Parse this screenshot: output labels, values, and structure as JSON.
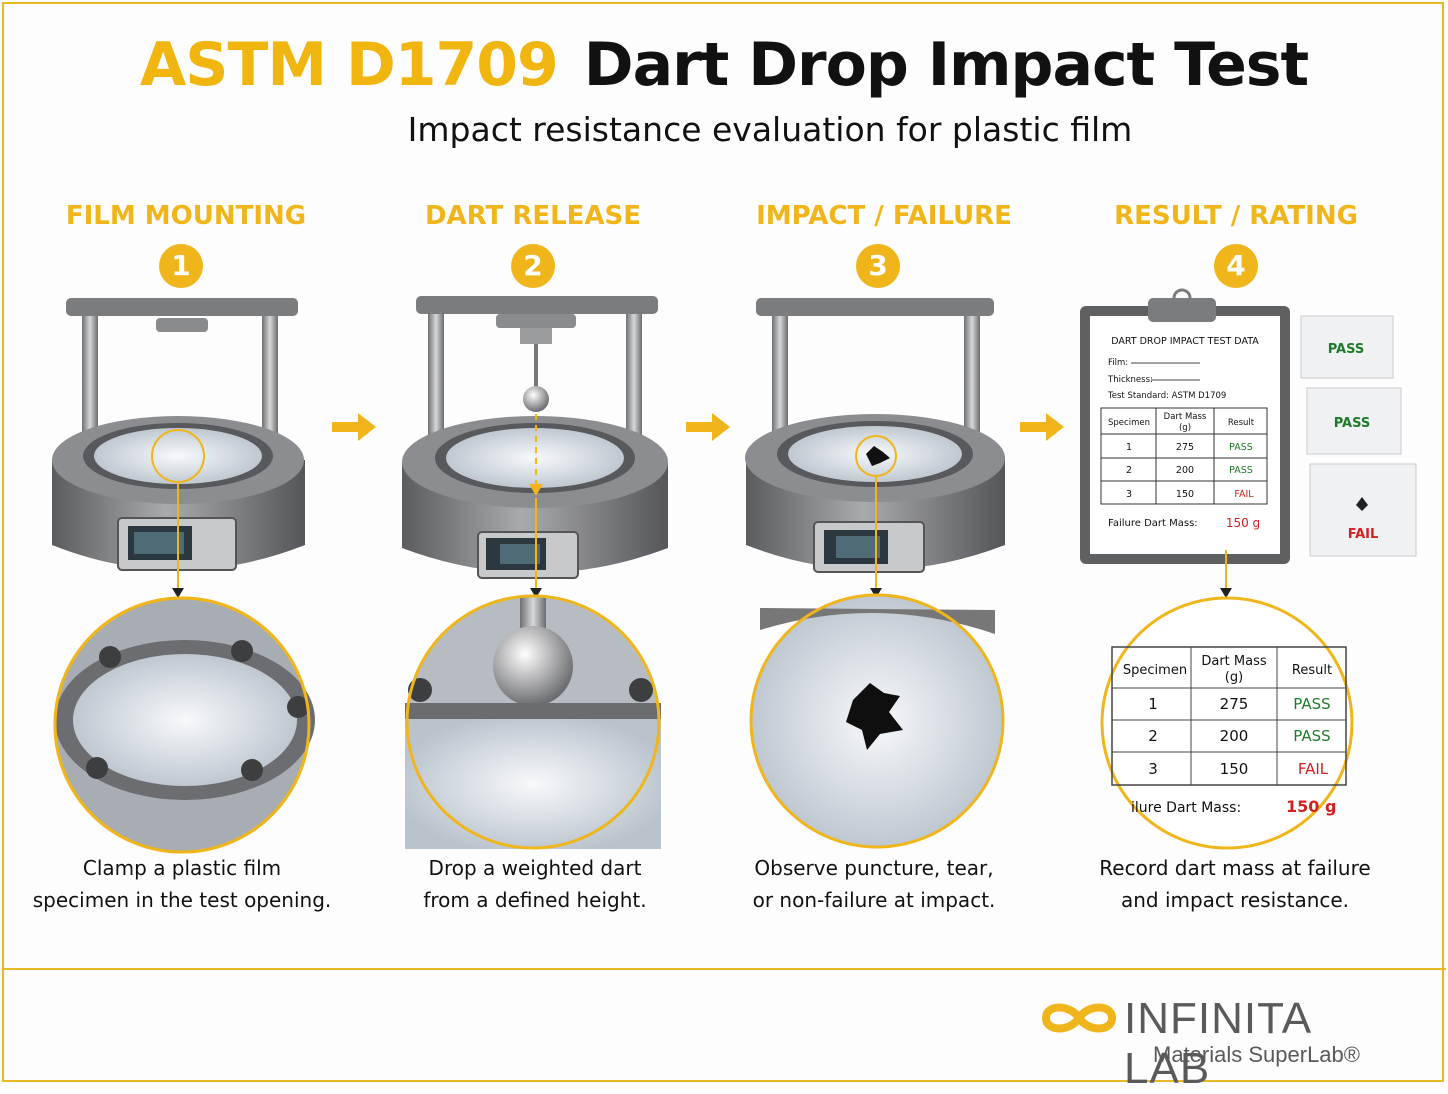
{
  "header": {
    "standard": "ASTM D1709",
    "name": "Dart Drop Impact Test",
    "subtitle": "Impact resistance evaluation for plastic film"
  },
  "steps": [
    {
      "number": "1",
      "title": "FILM MOUNTING",
      "caption_line1": "Clamp a plastic film",
      "caption_line2": "specimen in the test opening."
    },
    {
      "number": "2",
      "title": "DART RELEASE",
      "caption_line1": "Drop a weighted dart",
      "caption_line2": "from a defined height."
    },
    {
      "number": "3",
      "title": "IMPACT / FAILURE",
      "caption_line1": "Observe puncture, tear,",
      "caption_line2": "or non-failure at impact."
    },
    {
      "number": "4",
      "title": "RESULT / RATING",
      "caption_line1": "Record dart mass at failure",
      "caption_line2": "and impact resistance."
    }
  ],
  "datasheet": {
    "heading": "DART DROP IMPACT TEST DATA",
    "film_label": "Film:",
    "thickness_label": "Thickness:",
    "standard_label": "Test Standard: ASTM D1709",
    "col_specimen": "Specimen",
    "col_mass_line1": "Dart Mass",
    "col_mass_line2": "(g)",
    "col_result": "Result",
    "rows": [
      {
        "specimen": "1",
        "mass": "275",
        "result": "PASS"
      },
      {
        "specimen": "2",
        "mass": "200",
        "result": "PASS"
      },
      {
        "specimen": "3",
        "mass": "150",
        "result": "FAIL"
      }
    ],
    "failure_label": "Failure Dart Mass:",
    "failure_value": "150 g",
    "zoom_failure_label": "ilure Dart Mass:",
    "zoom_failure_value": "150 g"
  },
  "samples": [
    "PASS",
    "PASS",
    "FAIL"
  ],
  "logo": {
    "word": "INFINITA LAB",
    "sub": "Materials SuperLab®"
  },
  "colors": {
    "accent": "#efb51a",
    "pass": "#1f7a2a",
    "fail": "#d32020"
  }
}
